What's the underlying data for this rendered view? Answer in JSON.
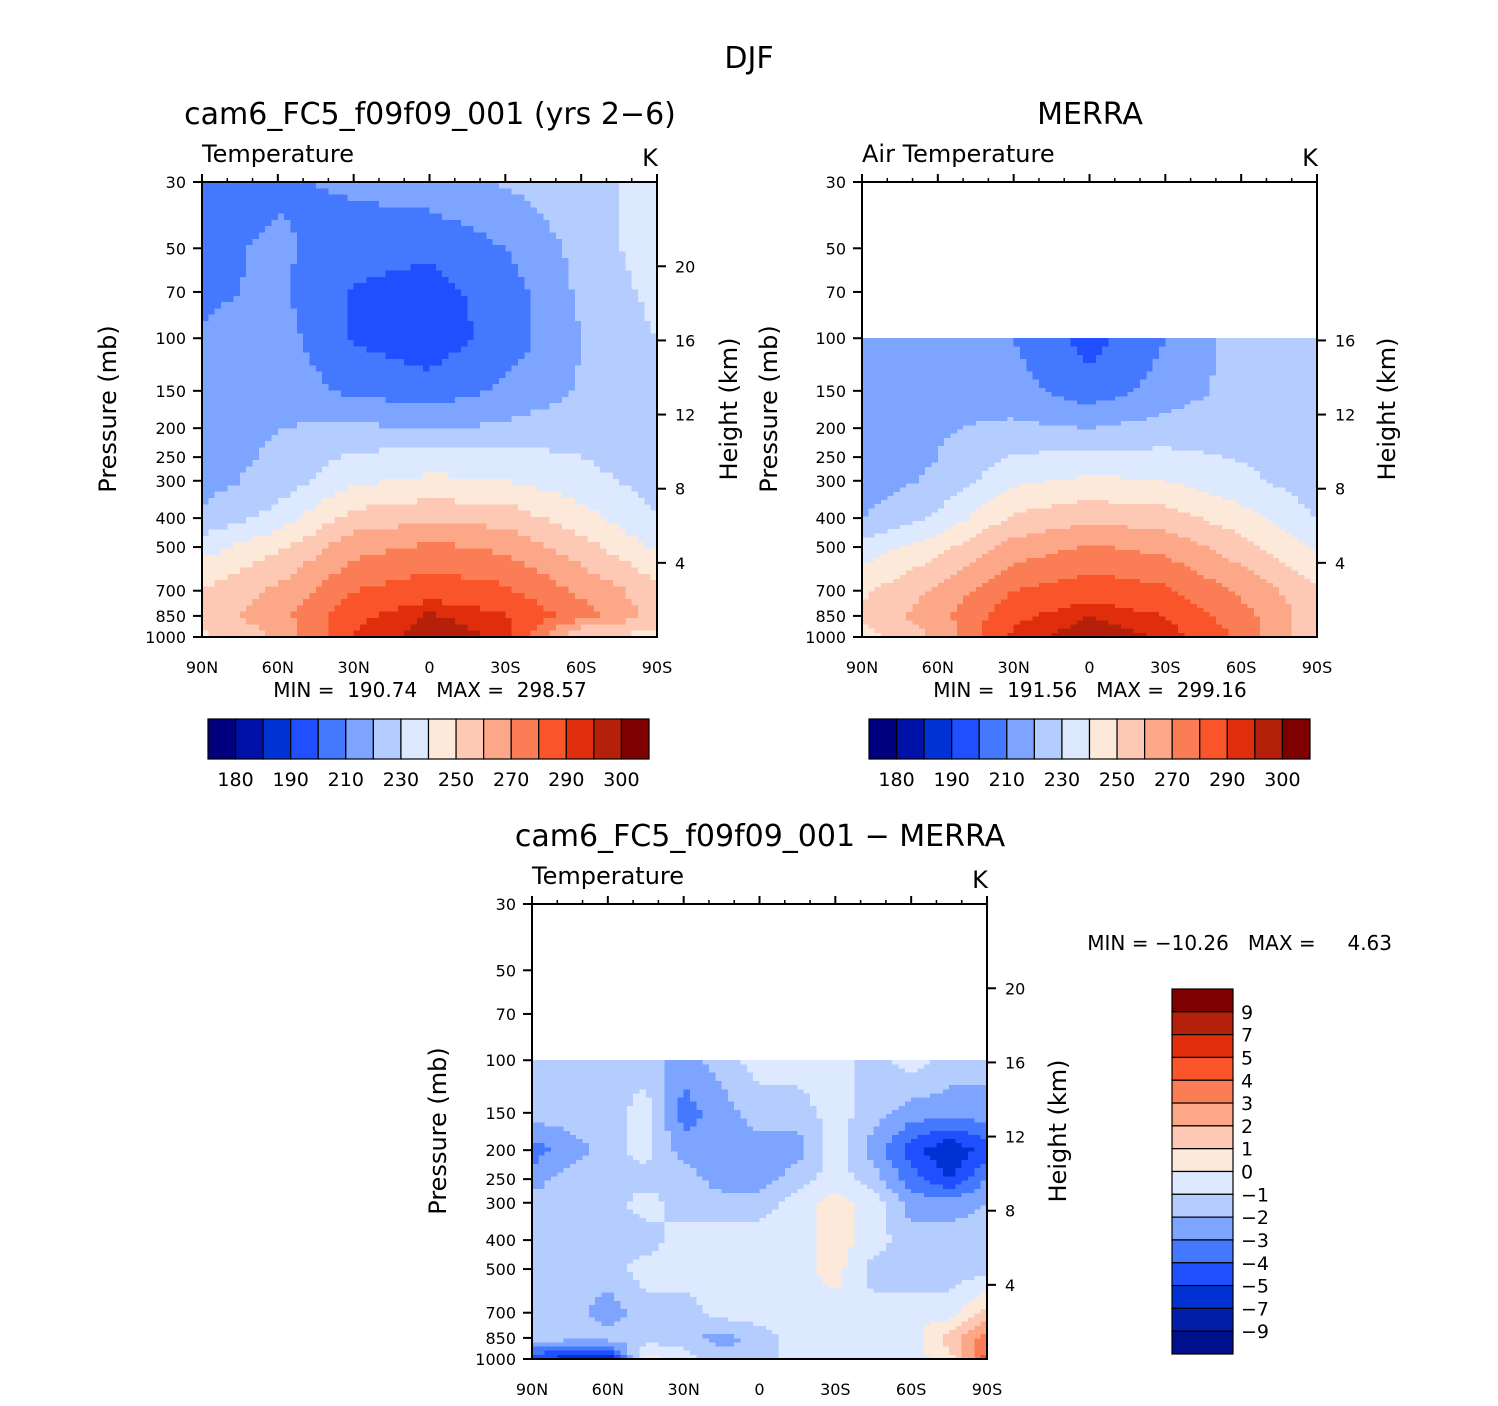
{
  "figure": {
    "title": "DJF",
    "colors": {
      "full": [
        "#00007f",
        "#0011a8",
        "#0033d4",
        "#1f4fff",
        "#4479ff",
        "#7da4ff",
        "#b5ccff",
        "#dce9ff",
        "#fde9da",
        "#fdc9b4",
        "#fca888",
        "#fb7d55",
        "#f9542a",
        "#e02e0c",
        "#b4200a",
        "#7f0000"
      ],
      "diff": [
        "#000f8c",
        "#001ea8",
        "#0032d3",
        "#1f4fff",
        "#4479ff",
        "#7da4ff",
        "#b5ccff",
        "#dce9ff",
        "#fde9da",
        "#fdc9b4",
        "#fca888",
        "#fb7d55",
        "#f9542a",
        "#e02e0c",
        "#b4200a",
        "#7f0000"
      ]
    }
  },
  "panels": [
    {
      "id": "model",
      "title": "cam6_FC5_f09f09_001 (yrs 2−6)",
      "left_label": "Temperature",
      "right_label": "K",
      "ylabel": "Pressure (mb)",
      "y2label": "Height (km)",
      "minmax": "MIN =  190.74   MAX =  298.57",
      "cbar_labels": [
        "180",
        "190",
        "210",
        "230",
        "250",
        "270",
        "290",
        "300"
      ]
    },
    {
      "id": "obs",
      "title": "MERRA",
      "left_label": "Air Temperature",
      "right_label": "K",
      "ylabel": "Pressure (mb)",
      "y2label": "Height (km)",
      "minmax": "MIN =  191.56   MAX =  299.16",
      "cbar_labels": [
        "180",
        "190",
        "210",
        "230",
        "250",
        "270",
        "290",
        "300"
      ]
    },
    {
      "id": "diff",
      "title": "cam6_FC5_f09f09_001 − MERRA",
      "left_label": "Temperature",
      "right_label": "K",
      "ylabel": "Pressure (mb)",
      "y2label": "Height (km)",
      "minmax": "MIN = −10.26   MAX =     4.63",
      "cbar_labels": [
        "9",
        "7",
        "5",
        "4",
        "3",
        "2",
        "1",
        "0",
        "−1",
        "−2",
        "−3",
        "−4",
        "−5",
        "−7",
        "−9"
      ]
    }
  ],
  "chart_data": [
    {
      "type": "heatmap",
      "title": "cam6_FC5_f09f09_001 (yrs 2−6)",
      "subtitle": "Temperature",
      "units": "K",
      "xlabel": "",
      "ylabel": "Pressure (mb)",
      "y2label": "Height (km)",
      "x_ticks": [
        "90N",
        "60N",
        "30N",
        "0",
        "30S",
        "60S",
        "90S"
      ],
      "y_ticks": [
        30,
        50,
        70,
        100,
        150,
        200,
        250,
        300,
        400,
        500,
        700,
        850,
        1000
      ],
      "y2_ticks": [
        4,
        8,
        12,
        16,
        20
      ],
      "ylim": [
        1000,
        30
      ],
      "y_scale": "log",
      "x_points": [
        "90N",
        "60N",
        "30N",
        "0",
        "30S",
        "60S",
        "90S"
      ],
      "y_points": [
        30,
        50,
        70,
        100,
        150,
        200,
        250,
        300,
        400,
        500,
        700,
        850,
        1000
      ],
      "z_values": [
        [
          205,
          208,
          212,
          216,
          221,
          227,
          233
        ],
        [
          207,
          212,
          204,
          202,
          210,
          223,
          236
        ],
        [
          208,
          212,
          199,
          196,
          205,
          222,
          233
        ],
        [
          211,
          215,
          199,
          194,
          204,
          220,
          230
        ],
        [
          212,
          216,
          208,
          204,
          212,
          221,
          224
        ],
        [
          214,
          220,
          222,
          219,
          222,
          226,
          220
        ],
        [
          215,
          222,
          232,
          234,
          234,
          230,
          222
        ],
        [
          216,
          224,
          238,
          242,
          240,
          234,
          226
        ],
        [
          222,
          234,
          254,
          258,
          256,
          244,
          230
        ],
        [
          236,
          248,
          266,
          272,
          268,
          254,
          238
        ],
        [
          250,
          262,
          280,
          286,
          282,
          268,
          254
        ],
        [
          254,
          266,
          288,
          296,
          291,
          274,
          256
        ],
        [
          248,
          262,
          290,
          298,
          294,
          248,
          248
        ]
      ],
      "min": 190.74,
      "max": 298.57,
      "levels": [
        180,
        185,
        190,
        200,
        210,
        220,
        230,
        240,
        250,
        260,
        270,
        280,
        290,
        295,
        300
      ],
      "colorbar_labels": [
        "180",
        "190",
        "210",
        "230",
        "250",
        "270",
        "290",
        "300"
      ],
      "grid": false
    },
    {
      "type": "heatmap",
      "title": "MERRA",
      "subtitle": "Air Temperature",
      "units": "K",
      "xlabel": "",
      "ylabel": "Pressure (mb)",
      "y2label": "Height (km)",
      "x_ticks": [
        "90N",
        "60N",
        "30N",
        "0",
        "30S",
        "60S",
        "90S"
      ],
      "y_ticks": [
        30,
        50,
        70,
        100,
        150,
        200,
        250,
        300,
        400,
        500,
        700,
        850,
        1000
      ],
      "y2_ticks": [
        4,
        8,
        12,
        16
      ],
      "ylim": [
        1000,
        30
      ],
      "y_scale": "log",
      "data_top_pressure": 100,
      "x_points": [
        "90N",
        "60N",
        "30N",
        "0",
        "30S",
        "60S",
        "90S"
      ],
      "y_points": [
        100,
        150,
        200,
        250,
        300,
        400,
        500,
        700,
        850,
        1000
      ],
      "z_values": [
        [
          212,
          220,
          210,
          196,
          210,
          225,
          228
        ],
        [
          213,
          219,
          214,
          204,
          214,
          224,
          226
        ],
        [
          213,
          219,
          222,
          220,
          224,
          227,
          226
        ],
        [
          213,
          220,
          231,
          233,
          233,
          229,
          224
        ],
        [
          214,
          222,
          238,
          242,
          240,
          233,
          224
        ],
        [
          220,
          232,
          252,
          257,
          255,
          244,
          230
        ],
        [
          234,
          246,
          264,
          271,
          267,
          254,
          238
        ],
        [
          248,
          262,
          280,
          286,
          282,
          268,
          252
        ],
        [
          252,
          266,
          288,
          295,
          290,
          274,
          254
        ],
        [
          246,
          262,
          292,
          299,
          294,
          278,
          250
        ]
      ],
      "min": 191.56,
      "max": 299.16,
      "levels": [
        180,
        185,
        190,
        200,
        210,
        220,
        230,
        240,
        250,
        260,
        270,
        280,
        290,
        295,
        300
      ],
      "colorbar_labels": [
        "180",
        "190",
        "210",
        "230",
        "250",
        "270",
        "290",
        "300"
      ],
      "grid": false
    },
    {
      "type": "heatmap",
      "title": "cam6_FC5_f09f09_001 − MERRA",
      "subtitle": "Temperature",
      "units": "K",
      "xlabel": "",
      "ylabel": "Pressure (mb)",
      "y2label": "Height (km)",
      "x_ticks": [
        "90N",
        "60N",
        "30N",
        "0",
        "30S",
        "60S",
        "90S"
      ],
      "y_ticks": [
        30,
        50,
        70,
        100,
        150,
        200,
        250,
        300,
        400,
        500,
        700,
        850,
        1000
      ],
      "y2_ticks": [
        4,
        8,
        12,
        16,
        20
      ],
      "ylim": [
        1000,
        30
      ],
      "y_scale": "log",
      "data_top_pressure": 100,
      "x_points": [
        "90N",
        "75N",
        "60N",
        "45N",
        "30N",
        "15N",
        "0",
        "15S",
        "30S",
        "45S",
        "60S",
        "75S",
        "90S"
      ],
      "y_points": [
        100,
        150,
        200,
        250,
        300,
        400,
        500,
        700,
        850,
        1000
      ],
      "z_values": [
        [
          -1.5,
          -1.5,
          -1.5,
          -1.5,
          -2.5,
          -1.5,
          -0.5,
          -0.5,
          -0.5,
          -1.5,
          -0.5,
          -1.5,
          -1.5
        ],
        [
          -1.5,
          -1.5,
          -1.5,
          -0.5,
          -3.5,
          -2.5,
          -1.5,
          -1.5,
          -0.5,
          -1.5,
          -2.5,
          -2.5,
          -2.5
        ],
        [
          -3.5,
          -2.5,
          -1.5,
          -0.5,
          -2.5,
          -2.5,
          -2.5,
          -2.5,
          -0.5,
          -2.5,
          -4.5,
          -6.0,
          -4.5
        ],
        [
          -2.5,
          -1.5,
          -1.5,
          -1.5,
          -1.5,
          -2.5,
          -2.5,
          -1.5,
          -0.5,
          -1.5,
          -3.5,
          -5.0,
          -3.0
        ],
        [
          -1.5,
          -1.5,
          -1.5,
          -0.5,
          -1.5,
          -1.5,
          -1.5,
          -0.5,
          0.5,
          -0.5,
          -2.5,
          -2.5,
          -2.0
        ],
        [
          -1.5,
          -1.5,
          -1.5,
          -1.5,
          -0.5,
          -0.5,
          -0.5,
          -0.5,
          0.5,
          -0.5,
          -1.5,
          -1.5,
          -1.5
        ],
        [
          -1.5,
          -1.5,
          -1.5,
          -0.5,
          -0.5,
          -0.5,
          -0.5,
          -0.5,
          0.5,
          -1.5,
          -1.5,
          -1.5,
          -1.5
        ],
        [
          -1.5,
          -1.5,
          -2.5,
          -1.5,
          -1.5,
          -0.5,
          -0.5,
          -0.5,
          -0.5,
          -0.5,
          -0.5,
          -0.5,
          1.5
        ],
        [
          -1.5,
          -1.5,
          -1.5,
          -1.5,
          -1.5,
          -2.5,
          -1.5,
          -0.5,
          -0.5,
          -0.5,
          -0.5,
          1.5,
          3.5
        ],
        [
          -4.5,
          -6.0,
          -6.0,
          0.5,
          -0.5,
          -1.5,
          -1.5,
          -0.5,
          -0.5,
          -0.5,
          -0.5,
          0.5,
          4.5
        ]
      ],
      "min": -10.26,
      "max": 4.63,
      "levels": [
        -9,
        -7,
        -5,
        -4,
        -3,
        -2,
        -1,
        0,
        1,
        2,
        3,
        4,
        5,
        7,
        9
      ],
      "colorbar_labels": [
        "9",
        "7",
        "5",
        "4",
        "3",
        "2",
        "1",
        "0",
        "−1",
        "−2",
        "−3",
        "−4",
        "−5",
        "−7",
        "−9"
      ],
      "grid": false
    }
  ]
}
